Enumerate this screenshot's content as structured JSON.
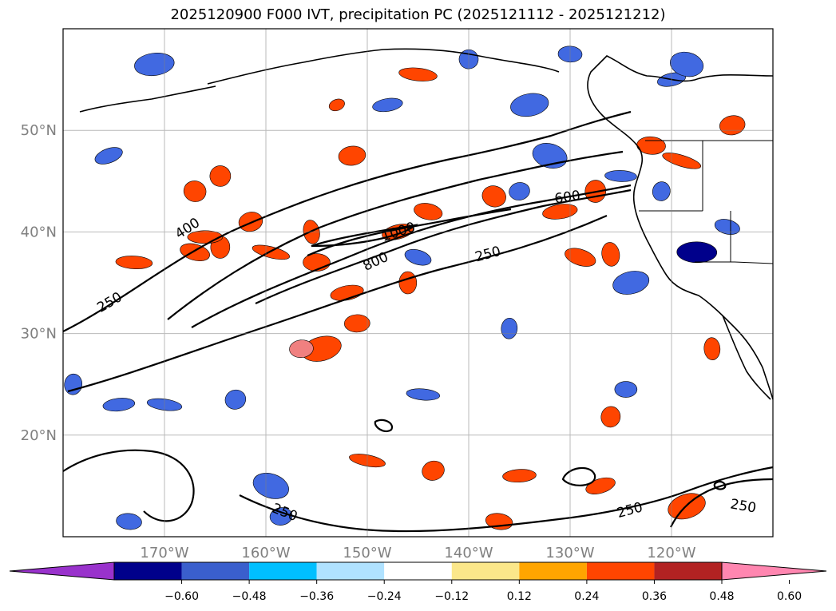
{
  "title": "2025120900 F000 IVT, precipitation PC (2025121112 - 2025121212)",
  "map": {
    "lon_range": [
      -180,
      -110
    ],
    "lat_range": [
      10,
      60
    ],
    "lon_ticks": [
      {
        "lon": -170,
        "label": "170°W"
      },
      {
        "lon": -160,
        "label": "160°W"
      },
      {
        "lon": -150,
        "label": "150°W"
      },
      {
        "lon": -140,
        "label": "140°W"
      },
      {
        "lon": -130,
        "label": "130°W"
      },
      {
        "lon": -120,
        "label": "120°W"
      }
    ],
    "lat_ticks": [
      {
        "lat": 50,
        "label": "50°N"
      },
      {
        "lat": 40,
        "label": "40°N"
      },
      {
        "lat": 30,
        "label": "30°N"
      },
      {
        "lat": 20,
        "label": "20°N"
      }
    ],
    "contour_labels": [
      {
        "text": "400",
        "lon": -167.5,
        "lat": 40.0,
        "rot": -33
      },
      {
        "text": "1000",
        "lon": -146.8,
        "lat": 39.6,
        "rot": -18
      },
      {
        "text": "800",
        "lon": -149.0,
        "lat": 36.7,
        "rot": -25
      },
      {
        "text": "600",
        "lon": -130.2,
        "lat": 43.0,
        "rot": -8
      },
      {
        "text": "250",
        "lon": -175.2,
        "lat": 32.7,
        "rot": -30
      },
      {
        "text": "250",
        "lon": -138.0,
        "lat": 37.4,
        "rot": -15
      },
      {
        "text": "250",
        "lon": -158.3,
        "lat": 12.0,
        "rot": 22
      },
      {
        "text": "250",
        "lon": -124.0,
        "lat": 12.2,
        "rot": -15
      },
      {
        "text": "250",
        "lon": -113.0,
        "lat": 12.6,
        "rot": 10
      }
    ],
    "blobs": [
      {
        "lon": -153.0,
        "lat": 52.5,
        "c": "#ff4500"
      },
      {
        "lon": -151.5,
        "lat": 47.5,
        "c": "#ff4500"
      },
      {
        "lon": -145.0,
        "lat": 55.5,
        "c": "#ff4500"
      },
      {
        "lon": -137.5,
        "lat": 43.5,
        "c": "#ff4500"
      },
      {
        "lon": -131.0,
        "lat": 42.0,
        "c": "#ff4500"
      },
      {
        "lon": -127.5,
        "lat": 44.0,
        "c": "#ff4500"
      },
      {
        "lon": -129.0,
        "lat": 37.5,
        "c": "#ff4500"
      },
      {
        "lon": -126.0,
        "lat": 37.8,
        "c": "#ff4500"
      },
      {
        "lon": -122.0,
        "lat": 48.5,
        "c": "#ff4500"
      },
      {
        "lon": -119.0,
        "lat": 47.0,
        "c": "#ff4500"
      },
      {
        "lon": -114.0,
        "lat": 50.5,
        "c": "#ff4500"
      },
      {
        "lon": -173.0,
        "lat": 37.0,
        "c": "#ff4500"
      },
      {
        "lon": -167.0,
        "lat": 44.0,
        "c": "#ff4500"
      },
      {
        "lon": -152.0,
        "lat": 34.0,
        "c": "#ff4500"
      },
      {
        "lon": -164.5,
        "lat": 38.5,
        "c": "#ff4500"
      },
      {
        "lon": -167.0,
        "lat": 38.0,
        "c": "#ff4500"
      },
      {
        "lon": -155.5,
        "lat": 40.0,
        "c": "#ff4500"
      },
      {
        "lon": -155.0,
        "lat": 37.0,
        "c": "#ff4500"
      },
      {
        "lon": -159.5,
        "lat": 38.0,
        "c": "#ff4500"
      },
      {
        "lon": -161.5,
        "lat": 41.0,
        "c": "#ff4500"
      },
      {
        "lon": -166.0,
        "lat": 39.5,
        "c": "#ff4500"
      },
      {
        "lon": -164.5,
        "lat": 45.5,
        "c": "#ff4500"
      },
      {
        "lon": -147.0,
        "lat": 40.0,
        "c": "#ff4500"
      },
      {
        "lon": -146.0,
        "lat": 35.0,
        "c": "#ff4500"
      },
      {
        "lon": -144.0,
        "lat": 42.0,
        "c": "#ff4500"
      },
      {
        "lon": -154.5,
        "lat": 28.5,
        "c": "#ff4500"
      },
      {
        "lon": -151.0,
        "lat": 31.0,
        "c": "#ff4500"
      },
      {
        "lon": -150.0,
        "lat": 17.5,
        "c": "#ff4500"
      },
      {
        "lon": -143.5,
        "lat": 16.5,
        "c": "#ff4500"
      },
      {
        "lon": -135.0,
        "lat": 16.0,
        "c": "#ff4500"
      },
      {
        "lon": -126.0,
        "lat": 21.8,
        "c": "#ff4500"
      },
      {
        "lon": -127.0,
        "lat": 15.0,
        "c": "#ff4500"
      },
      {
        "lon": -116.0,
        "lat": 28.5,
        "c": "#ff4500"
      },
      {
        "lon": -137.0,
        "lat": 11.5,
        "c": "#ff4500"
      },
      {
        "lon": -118.5,
        "lat": 13.0,
        "c": "#ff4500"
      },
      {
        "lon": -156.5,
        "lat": 28.5,
        "c": "#f08080"
      },
      {
        "lon": -170.0,
        "lat": 23.0,
        "c": "#4169e1"
      },
      {
        "lon": -163.0,
        "lat": 23.5,
        "c": "#4169e1"
      },
      {
        "lon": -174.5,
        "lat": 23.0,
        "c": "#4169e1"
      },
      {
        "lon": -179.0,
        "lat": 25.0,
        "c": "#4169e1"
      },
      {
        "lon": -175.5,
        "lat": 47.5,
        "c": "#4169e1"
      },
      {
        "lon": -171.0,
        "lat": 56.5,
        "c": "#4169e1"
      },
      {
        "lon": -173.5,
        "lat": 11.5,
        "c": "#4169e1"
      },
      {
        "lon": -159.5,
        "lat": 15.0,
        "c": "#4169e1"
      },
      {
        "lon": -158.5,
        "lat": 12.0,
        "c": "#4169e1"
      },
      {
        "lon": -144.5,
        "lat": 24.0,
        "c": "#4169e1"
      },
      {
        "lon": -140.0,
        "lat": 57.0,
        "c": "#4169e1"
      },
      {
        "lon": -148.0,
        "lat": 52.5,
        "c": "#4169e1"
      },
      {
        "lon": -136.0,
        "lat": 30.5,
        "c": "#4169e1"
      },
      {
        "lon": -145.0,
        "lat": 37.5,
        "c": "#4169e1"
      },
      {
        "lon": -134.0,
        "lat": 52.5,
        "c": "#4169e1"
      },
      {
        "lon": -130.0,
        "lat": 57.5,
        "c": "#4169e1"
      },
      {
        "lon": -132.0,
        "lat": 47.5,
        "c": "#4169e1"
      },
      {
        "lon": -135.0,
        "lat": 44.0,
        "c": "#4169e1"
      },
      {
        "lon": -125.0,
        "lat": 45.5,
        "c": "#4169e1"
      },
      {
        "lon": -121.0,
        "lat": 44.0,
        "c": "#4169e1"
      },
      {
        "lon": -120.0,
        "lat": 55.0,
        "c": "#4169e1"
      },
      {
        "lon": -117.5,
        "lat": 38.0,
        "c": "#00008b"
      },
      {
        "lon": -114.5,
        "lat": 40.5,
        "c": "#4169e1"
      },
      {
        "lon": -124.0,
        "lat": 35.0,
        "c": "#4169e1"
      },
      {
        "lon": -124.5,
        "lat": 24.5,
        "c": "#4169e1"
      },
      {
        "lon": -118.5,
        "lat": 56.5,
        "c": "#4169e1"
      }
    ]
  },
  "colorbar": {
    "ticks": [
      "−0.60",
      "−0.48",
      "−0.36",
      "−0.24",
      "−0.12",
      "0.12",
      "0.24",
      "0.36",
      "0.48",
      "0.60"
    ],
    "colors": [
      "#9932cc",
      "#00008b",
      "#3a5fcd",
      "#00bfff",
      "#b0e2ff",
      "#ffffff",
      "#fbe78a",
      "#ffa500",
      "#ff4500",
      "#b22222",
      "#ff86b0"
    ]
  }
}
